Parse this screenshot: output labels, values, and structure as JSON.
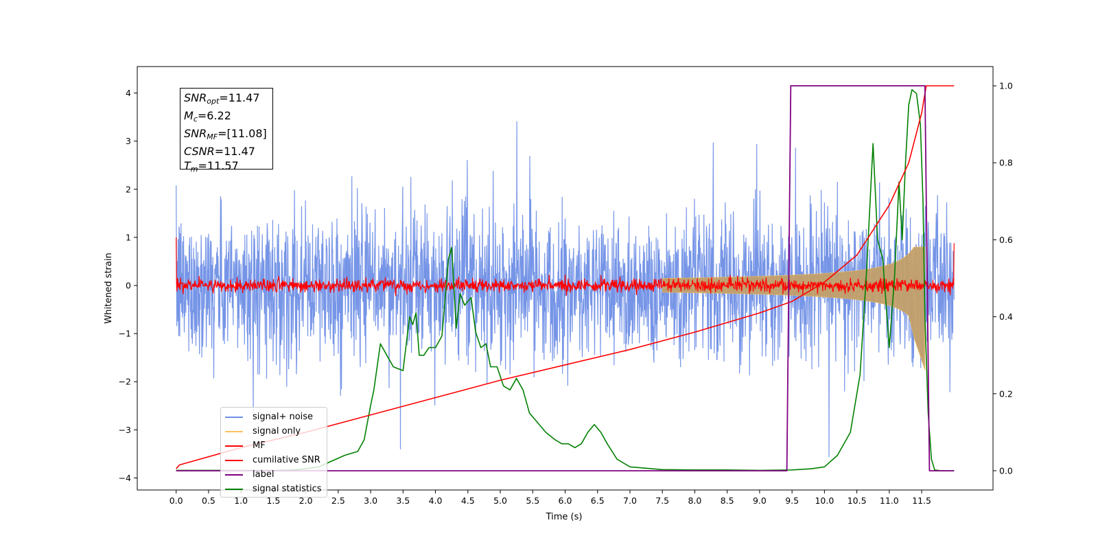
{
  "chart_data": {
    "type": "line",
    "xlabel": "Time (s)",
    "ylabel": "Whitened strain",
    "xlim": [
      -0.6,
      12.6
    ],
    "ylim": [
      -4.25,
      4.55
    ],
    "y2lim": [
      -0.05,
      1.05
    ],
    "x_ticks": [
      "0.0",
      "0.5",
      "1.0",
      "1.5",
      "2.0",
      "2.5",
      "3.0",
      "3.5",
      "4.0",
      "4.5",
      "5.0",
      "5.5",
      "6.0",
      "6.5",
      "7.0",
      "7.5",
      "8.0",
      "8.5",
      "9.0",
      "9.5",
      "10.0",
      "10.5",
      "11.0",
      "11.5"
    ],
    "y_ticks": [
      "−4",
      "−3",
      "−2",
      "−1",
      "0",
      "1",
      "2",
      "3",
      "4"
    ],
    "y2_ticks": [
      "0.0",
      "0.2",
      "0.4",
      "0.6",
      "0.8",
      "1.0"
    ],
    "colors": {
      "signal_noise": "#6f8fe6",
      "signal_only": "#f5c060",
      "mf": "#ff0000",
      "cumulative_snr": "#ff0000",
      "label": "#800080",
      "signal_statistics": "#008000"
    },
    "stats_box": [
      {
        "sym": "SNR",
        "sub": "opt",
        "value": "=11.47"
      },
      {
        "sym": "M",
        "sub": "c",
        "value": "=6.22"
      },
      {
        "sym": "SNR",
        "sub": "MF",
        "value": "=[11.08]"
      },
      {
        "sym": "CSNR",
        "sub": "",
        "value": "=11.47"
      },
      {
        "sym": "T",
        "sub": "m",
        "value": "=11.57"
      }
    ],
    "legend": [
      "signal+ noise",
      "signal only",
      "MF",
      "cumilative SNR",
      "label",
      "signal statistics"
    ],
    "series": [
      {
        "name": "signal+ noise",
        "axis": "left",
        "style": "noise",
        "x_range": [
          0.0,
          12.0
        ],
        "sigma": 0.75
      },
      {
        "name": "signal only",
        "axis": "left",
        "style": "chirp",
        "x_range": [
          0.0,
          11.57
        ],
        "max_amplitude": 0.8
      },
      {
        "name": "MF",
        "axis": "left",
        "style": "noise",
        "x_range": [
          0.0,
          12.0
        ],
        "sigma": 0.07
      },
      {
        "name": "cumilative SNR",
        "axis": "right",
        "x": [
          0.0,
          0.05,
          1.0,
          2.0,
          3.0,
          4.0,
          5.0,
          6.0,
          7.0,
          8.0,
          9.0,
          9.5,
          10.0,
          10.5,
          11.0,
          11.3,
          11.5,
          11.57,
          12.0
        ],
        "y": [
          0.005,
          0.015,
          0.06,
          0.1,
          0.145,
          0.19,
          0.235,
          0.275,
          0.315,
          0.36,
          0.41,
          0.44,
          0.49,
          0.56,
          0.69,
          0.8,
          0.93,
          1.0,
          1.0
        ]
      },
      {
        "name": "label",
        "axis": "right",
        "x": [
          0.0,
          9.42,
          9.48,
          11.55,
          11.62,
          12.0
        ],
        "y": [
          0.0,
          0.0,
          1.0,
          1.0,
          0.0,
          0.0
        ]
      },
      {
        "name": "signal statistics",
        "axis": "right",
        "x": [
          0.0,
          0.5,
          1.0,
          1.5,
          1.8,
          2.0,
          2.2,
          2.4,
          2.6,
          2.8,
          2.9,
          3.0,
          3.05,
          3.15,
          3.25,
          3.35,
          3.5,
          3.6,
          3.65,
          3.7,
          3.75,
          3.82,
          3.9,
          4.0,
          4.1,
          4.2,
          4.25,
          4.32,
          4.38,
          4.45,
          4.55,
          4.62,
          4.7,
          4.78,
          4.85,
          4.95,
          5.05,
          5.15,
          5.25,
          5.35,
          5.45,
          5.55,
          5.7,
          5.85,
          5.95,
          6.05,
          6.15,
          6.25,
          6.35,
          6.45,
          6.55,
          6.65,
          6.8,
          7.0,
          7.5,
          8.0,
          8.5,
          9.0,
          9.5,
          9.8,
          10.0,
          10.2,
          10.4,
          10.55,
          10.65,
          10.75,
          10.82,
          10.9,
          11.0,
          11.08,
          11.15,
          11.2,
          11.25,
          11.3,
          11.35,
          11.42,
          11.48,
          11.52,
          11.55,
          11.6,
          11.65,
          11.7,
          11.8,
          12.0
        ],
        "y": [
          0.001,
          0.001,
          0.001,
          0.001,
          0.002,
          0.005,
          0.01,
          0.025,
          0.04,
          0.05,
          0.08,
          0.17,
          0.21,
          0.33,
          0.3,
          0.27,
          0.26,
          0.4,
          0.38,
          0.41,
          0.3,
          0.3,
          0.32,
          0.32,
          0.35,
          0.55,
          0.58,
          0.37,
          0.46,
          0.43,
          0.45,
          0.36,
          0.32,
          0.33,
          0.27,
          0.27,
          0.22,
          0.21,
          0.24,
          0.21,
          0.15,
          0.13,
          0.1,
          0.08,
          0.07,
          0.07,
          0.06,
          0.07,
          0.1,
          0.12,
          0.1,
          0.07,
          0.03,
          0.01,
          0.003,
          0.002,
          0.002,
          0.001,
          0.002,
          0.005,
          0.01,
          0.04,
          0.1,
          0.25,
          0.52,
          0.85,
          0.6,
          0.55,
          0.32,
          0.5,
          0.75,
          0.6,
          0.8,
          0.95,
          0.99,
          0.98,
          0.9,
          0.7,
          0.4,
          0.15,
          0.03,
          0.002,
          0.0,
          0.0
        ]
      }
    ]
  }
}
